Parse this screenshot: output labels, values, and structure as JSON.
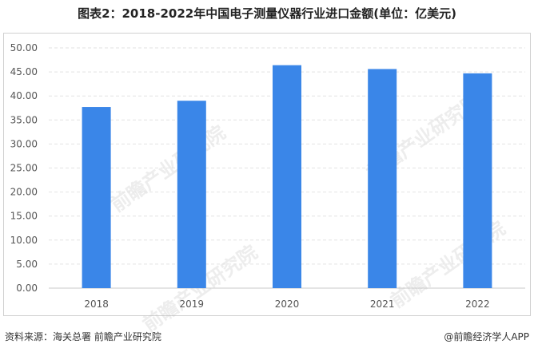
{
  "title": "图表2：2018-2022年中国电子测量仪器行业进口金额(单位：亿美元)",
  "footer": {
    "source": "资料来源：海关总署 前瞻产业研究院",
    "brand": "@前瞻经济学人APP"
  },
  "watermark": "前瞻产业研究院",
  "chart_data": {
    "type": "bar",
    "categories": [
      "2018",
      "2019",
      "2020",
      "2021",
      "2022"
    ],
    "values": [
      37.7,
      39.0,
      46.4,
      45.6,
      44.7
    ],
    "ylim": [
      0,
      50
    ],
    "yticks": [
      "0.00",
      "5.00",
      "10.00",
      "15.00",
      "20.00",
      "25.00",
      "30.00",
      "35.00",
      "40.00",
      "45.00",
      "50.00"
    ],
    "grid": true,
    "bar_color": "#3a86e8"
  }
}
